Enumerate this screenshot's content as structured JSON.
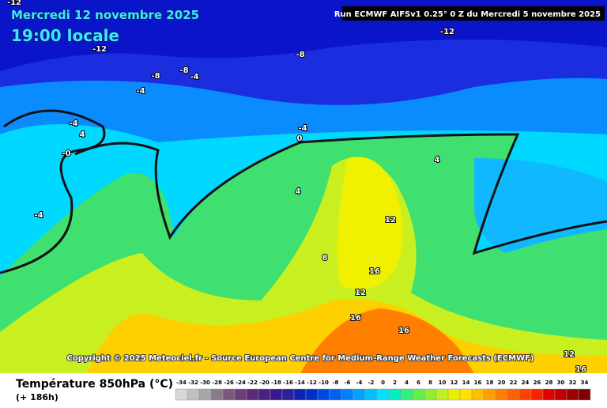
{
  "header": {
    "date": "Mercredi 12 novembre 2025",
    "time": "19:00 locale",
    "run": "Run ECMWF AIFSv1 0.25° 0 Z du Mercredi 5 novembre 2025"
  },
  "map": {
    "labels": [
      -12,
      -12,
      -12,
      -8,
      -8,
      -8,
      -4,
      -4,
      -4,
      4,
      "-0",
      -4,
      0,
      4,
      4,
      -4,
      12,
      8,
      16,
      12,
      16,
      16,
      12,
      16
    ],
    "copyright": "Copyright © 2025 Meteociel.fr - Source European Centre for Medium-Range Weather Forecasts (ECMWF)"
  },
  "legend": {
    "title": "Température 850hPa (°C)",
    "lead": "(+ 186h)",
    "values": [
      -34,
      -32,
      -30,
      -28,
      -26,
      -24,
      -22,
      -20,
      -18,
      -16,
      -14,
      -12,
      -10,
      -8,
      -6,
      -4,
      -2,
      0,
      2,
      4,
      6,
      8,
      10,
      12,
      14,
      16,
      18,
      20,
      22,
      24,
      26,
      28,
      30,
      32,
      34
    ],
    "colors": [
      "#d8d8d8",
      "#bfbfbf",
      "#a6a6a6",
      "#8c7a8c",
      "#7a5a7a",
      "#6e3e7a",
      "#5a2a7a",
      "#4a2080",
      "#3a1890",
      "#2a20a0",
      "#1020b0",
      "#0030c8",
      "#0048e0",
      "#0060f0",
      "#0080ff",
      "#00a0ff",
      "#00c0ff",
      "#00e0ff",
      "#00f0c0",
      "#30f080",
      "#60f050",
      "#90f030",
      "#c0f020",
      "#e8f000",
      "#ffe000",
      "#ffc000",
      "#ffa000",
      "#ff8000",
      "#ff6000",
      "#ff4000",
      "#ff2000",
      "#e00000",
      "#c00000",
      "#a00000",
      "#800000"
    ]
  }
}
